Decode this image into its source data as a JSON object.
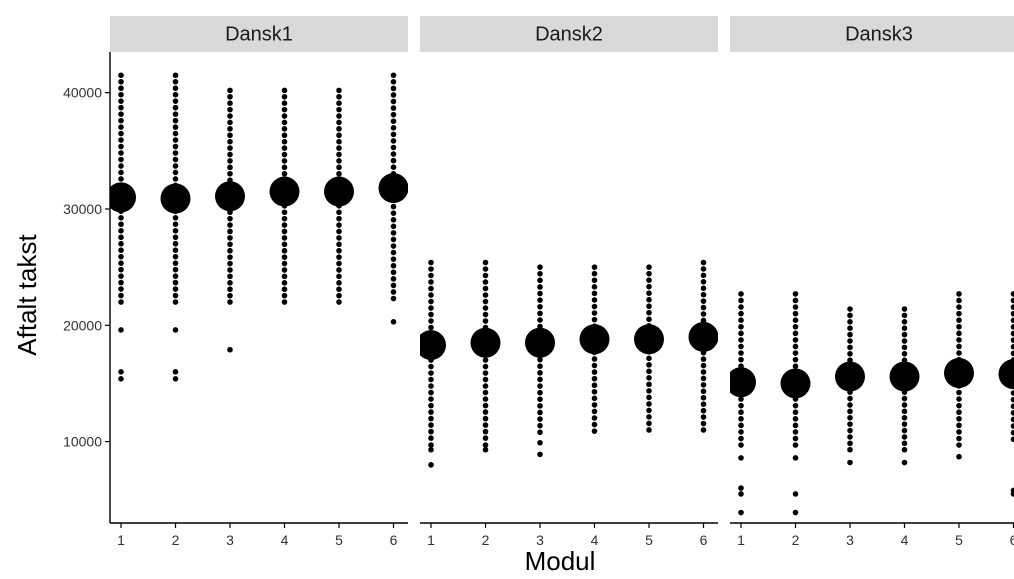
{
  "chart_data": {
    "type": "scatter",
    "xlabel": "Modul",
    "ylabel": "Aftalt takst",
    "ylim": [
      3000,
      43500
    ],
    "y_ticks": [
      10000,
      20000,
      30000,
      40000
    ],
    "x_categories": [
      "1",
      "2",
      "3",
      "4",
      "5",
      "6"
    ],
    "grid": false,
    "panels": [
      {
        "name": "Dansk1",
        "mean_points": [
          {
            "x": "1",
            "y": 31000
          },
          {
            "x": "2",
            "y": 30900
          },
          {
            "x": "3",
            "y": 31100
          },
          {
            "x": "4",
            "y": 31500
          },
          {
            "x": "5",
            "y": 31500
          },
          {
            "x": "6",
            "y": 31800
          }
        ],
        "observations": [
          {
            "x": "1",
            "min": 22000,
            "max": 41500,
            "outliers": [
              19600,
              16000,
              15400
            ]
          },
          {
            "x": "2",
            "min": 22000,
            "max": 41500,
            "outliers": [
              19600,
              16000,
              15400
            ]
          },
          {
            "x": "3",
            "min": 22000,
            "max": 40200,
            "outliers": [
              17900
            ]
          },
          {
            "x": "4",
            "min": 22000,
            "max": 40200,
            "outliers": []
          },
          {
            "x": "5",
            "min": 22000,
            "max": 40200,
            "outliers": []
          },
          {
            "x": "6",
            "min": 22300,
            "max": 41500,
            "outliers": [
              20300
            ]
          }
        ]
      },
      {
        "name": "Dansk2",
        "mean_points": [
          {
            "x": "1",
            "y": 18300
          },
          {
            "x": "2",
            "y": 18500
          },
          {
            "x": "3",
            "y": 18500
          },
          {
            "x": "4",
            "y": 18800
          },
          {
            "x": "5",
            "y": 18800
          },
          {
            "x": "6",
            "y": 19000
          }
        ],
        "observations": [
          {
            "x": "1",
            "min": 10300,
            "max": 25400,
            "outliers": [
              9700,
              9300,
              8000
            ]
          },
          {
            "x": "2",
            "min": 10300,
            "max": 25400,
            "outliers": [
              9700,
              9300
            ]
          },
          {
            "x": "3",
            "min": 10800,
            "max": 25000,
            "outliers": [
              9900,
              8900
            ]
          },
          {
            "x": "4",
            "min": 10900,
            "max": 25000,
            "outliers": []
          },
          {
            "x": "5",
            "min": 11000,
            "max": 25000,
            "outliers": []
          },
          {
            "x": "6",
            "min": 11000,
            "max": 25400,
            "outliers": []
          }
        ]
      },
      {
        "name": "Dansk3",
        "mean_points": [
          {
            "x": "1",
            "y": 15100
          },
          {
            "x": "2",
            "y": 15000
          },
          {
            "x": "3",
            "y": 15600
          },
          {
            "x": "4",
            "y": 15600
          },
          {
            "x": "5",
            "y": 15900
          },
          {
            "x": "6",
            "y": 15800
          }
        ],
        "observations": [
          {
            "x": "1",
            "min": 9700,
            "max": 22700,
            "outliers": [
              8600,
              6000,
              5500,
              3900
            ]
          },
          {
            "x": "2",
            "min": 9700,
            "max": 22700,
            "outliers": [
              8600,
              5500,
              3900
            ]
          },
          {
            "x": "3",
            "min": 9300,
            "max": 21400,
            "outliers": [
              8200
            ]
          },
          {
            "x": "4",
            "min": 9300,
            "max": 21400,
            "outliers": [
              8200
            ]
          },
          {
            "x": "5",
            "min": 9700,
            "max": 22700,
            "outliers": [
              8700
            ]
          },
          {
            "x": "6",
            "min": 10200,
            "max": 22700,
            "outliers": [
              5800,
              5500
            ]
          }
        ]
      }
    ]
  }
}
